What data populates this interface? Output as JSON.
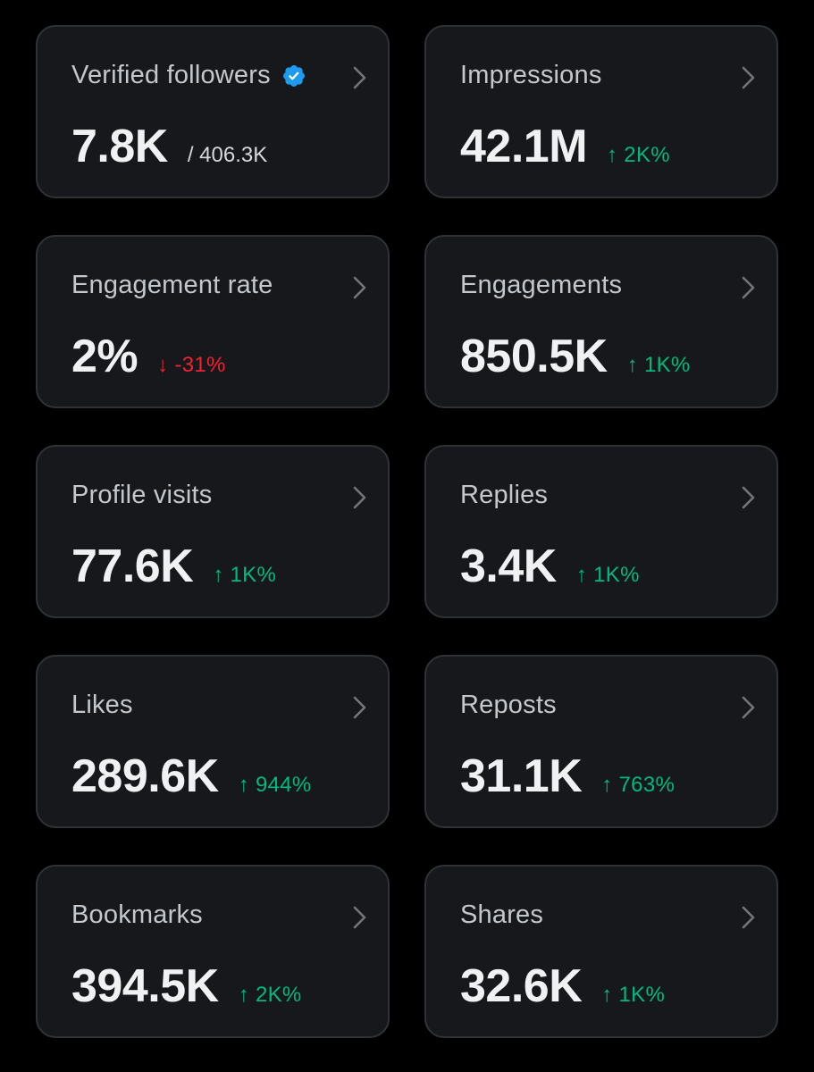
{
  "colors": {
    "background": "#000000",
    "card": "#16181c",
    "card_border": "#2f3336",
    "positive": "#00ba7c",
    "negative": "#f4212e",
    "verified": "#1d9bf0"
  },
  "cards": [
    {
      "title": "Verified followers",
      "value": "7.8K",
      "sub_value": "/ 406.3K",
      "verified_badge": "verified-badge-icon"
    },
    {
      "title": "Impressions",
      "value": "42.1M",
      "change": "↑ 2K%",
      "direction": "up"
    },
    {
      "title": "Engagement rate",
      "value": "2%",
      "change": "↓ -31%",
      "direction": "down"
    },
    {
      "title": "Engagements",
      "value": "850.5K",
      "change": "↑ 1K%",
      "direction": "up"
    },
    {
      "title": "Profile visits",
      "value": "77.6K",
      "change": "↑ 1K%",
      "direction": "up"
    },
    {
      "title": "Replies",
      "value": "3.4K",
      "change": "↑ 1K%",
      "direction": "up"
    },
    {
      "title": "Likes",
      "value": "289.6K",
      "change": "↑ 944%",
      "direction": "up"
    },
    {
      "title": "Reposts",
      "value": "31.1K",
      "change": "↑ 763%",
      "direction": "up"
    },
    {
      "title": "Bookmarks",
      "value": "394.5K",
      "change": "↑ 2K%",
      "direction": "up"
    },
    {
      "title": "Shares",
      "value": "32.6K",
      "change": "↑ 1K%",
      "direction": "up"
    }
  ]
}
